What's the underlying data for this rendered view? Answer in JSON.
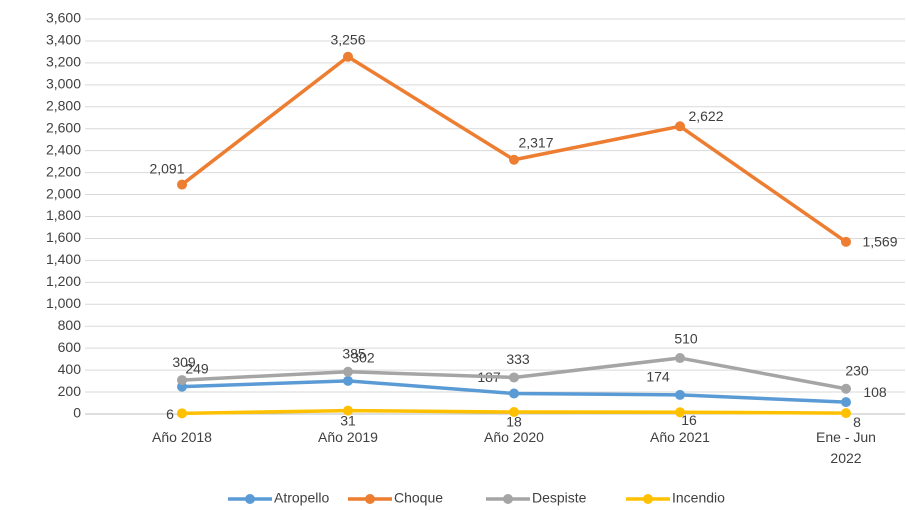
{
  "chart_data": {
    "type": "line",
    "categories": [
      "Año 2018",
      "Año 2019",
      "Año 2020",
      "Año 2021",
      "Ene - Jun 2022"
    ],
    "series": [
      {
        "name": "Atropello",
        "color": "#5b9bd5",
        "values": [
          249,
          302,
          187,
          174,
          108
        ]
      },
      {
        "name": "Choque",
        "color": "#ed7d31",
        "values": [
          2091,
          3256,
          2317,
          2622,
          1569
        ],
        "value_labels": [
          "2,091",
          "3,256",
          "2,317",
          "2,622",
          "1,569"
        ]
      },
      {
        "name": "Despiste",
        "color": "#a5a5a5",
        "values": [
          309,
          385,
          333,
          510,
          230
        ]
      },
      {
        "name": "Incendio",
        "color": "#ffc000",
        "values": [
          6,
          31,
          18,
          16,
          8
        ]
      }
    ],
    "ylim": [
      0,
      3600
    ],
    "yticks": [
      0,
      200,
      400,
      600,
      800,
      {
        "value": 1000,
        "label": "1,000"
      },
      {
        "value": 1200,
        "label": "1,200"
      },
      {
        "value": 1400,
        "label": "1,400"
      },
      {
        "value": 1600,
        "label": "1,600"
      },
      {
        "value": 1800,
        "label": "1,800"
      },
      {
        "value": 2000,
        "label": "2,000"
      },
      {
        "value": 2200,
        "label": "2,200"
      },
      {
        "value": 2400,
        "label": "2,400"
      },
      {
        "value": 2600,
        "label": "2,600"
      },
      {
        "value": 2800,
        "label": "2,800"
      },
      {
        "value": 3000,
        "label": "3,000"
      },
      {
        "value": 3200,
        "label": "3,200"
      },
      {
        "value": 3400,
        "label": "3,400"
      },
      {
        "value": 3600,
        "label": "3,600"
      }
    ],
    "grid": true,
    "legend": "bottom"
  }
}
